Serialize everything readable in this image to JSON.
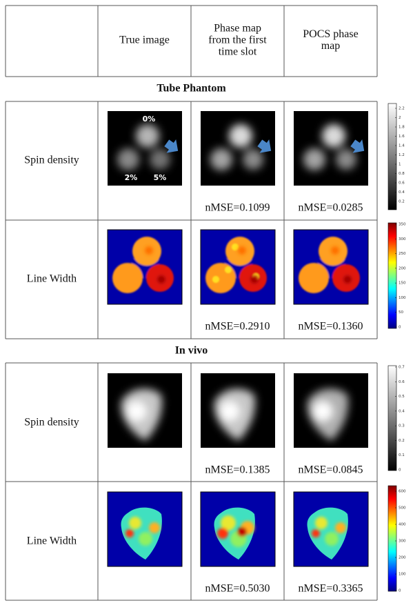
{
  "table": {
    "header": [
      [
        "True image"
      ],
      [
        "Phase map",
        "from the first",
        "time slot"
      ],
      [
        "POCS phase",
        "map"
      ]
    ],
    "sections": [
      {
        "title": "Tube Phantom",
        "rows": [
          {
            "label": "Spin density",
            "nmse": [
              "nMSE=0.1099",
              "nMSE=0.0285"
            ]
          },
          {
            "label": "Line Width",
            "nmse": [
              "nMSE=0.2910",
              "nMSE=0.1360"
            ]
          }
        ]
      },
      {
        "title": "In vivo",
        "rows": [
          {
            "label": "Spin density",
            "nmse": [
              "nMSE=0.1385",
              "nMSE=0.0845"
            ]
          },
          {
            "label": "Line Width",
            "nmse": [
              "nMSE=0.5030",
              "nMSE=0.3365"
            ]
          }
        ]
      }
    ],
    "annotations": [
      "0%",
      "2%",
      "5%"
    ]
  },
  "colorbars": [
    {
      "ticks": [
        2.2,
        2,
        1.8,
        1.6,
        1.4,
        1.2,
        1,
        0.8,
        0.6,
        0.4,
        0.2
      ]
    },
    {
      "ticks": [
        350,
        300,
        250,
        200,
        150,
        100,
        50,
        0
      ]
    },
    {
      "ticks": [
        0.7,
        0.6,
        0.5,
        0.4,
        0.3,
        0.2,
        0.1,
        0
      ]
    },
    {
      "ticks": [
        600,
        500,
        400,
        300,
        200,
        100,
        0
      ]
    }
  ]
}
